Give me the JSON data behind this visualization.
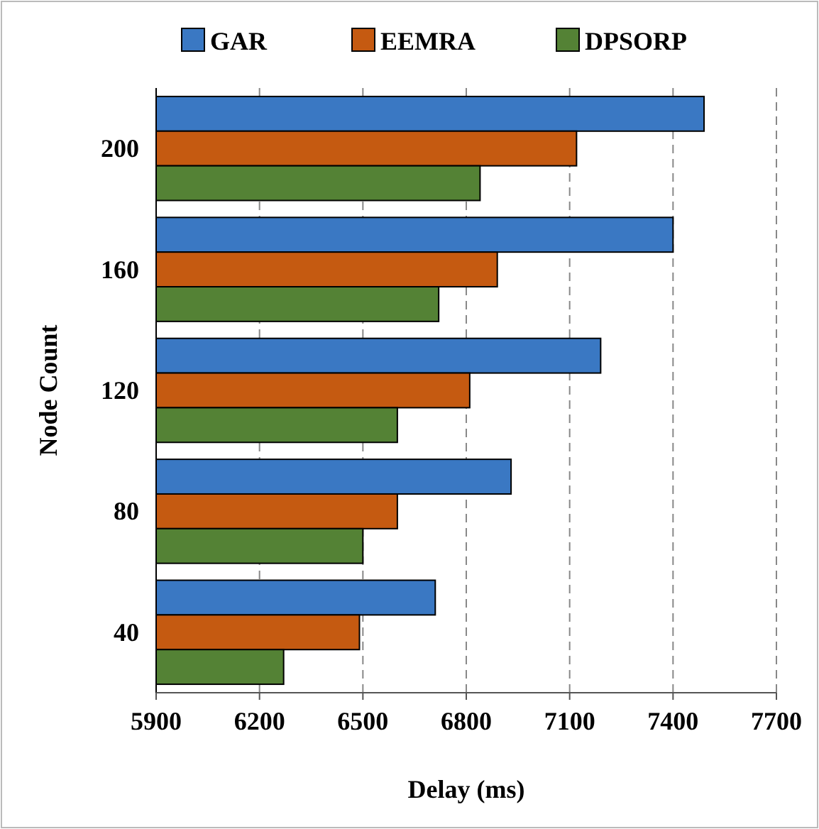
{
  "chart_data": {
    "type": "bar",
    "orientation": "horizontal",
    "xlabel": "Delay (ms)",
    "ylabel": "Node Count",
    "categories": [
      "200",
      "160",
      "120",
      "80",
      "40"
    ],
    "series": [
      {
        "name": "GAR",
        "color": "#3a78c3",
        "values": [
          7490,
          7400,
          7190,
          6930,
          6710
        ]
      },
      {
        "name": "EEMRA",
        "color": "#c55a11",
        "values": [
          7120,
          6890,
          6810,
          6600,
          6490
        ]
      },
      {
        "name": "DPSORP",
        "color": "#548235",
        "values": [
          6840,
          6720,
          6600,
          6500,
          6270
        ]
      }
    ],
    "xlim": [
      5900,
      7700
    ],
    "xticks": [
      5900,
      6200,
      6500,
      6800,
      7100,
      7400,
      7700
    ],
    "grid": "x",
    "legend": "top"
  }
}
